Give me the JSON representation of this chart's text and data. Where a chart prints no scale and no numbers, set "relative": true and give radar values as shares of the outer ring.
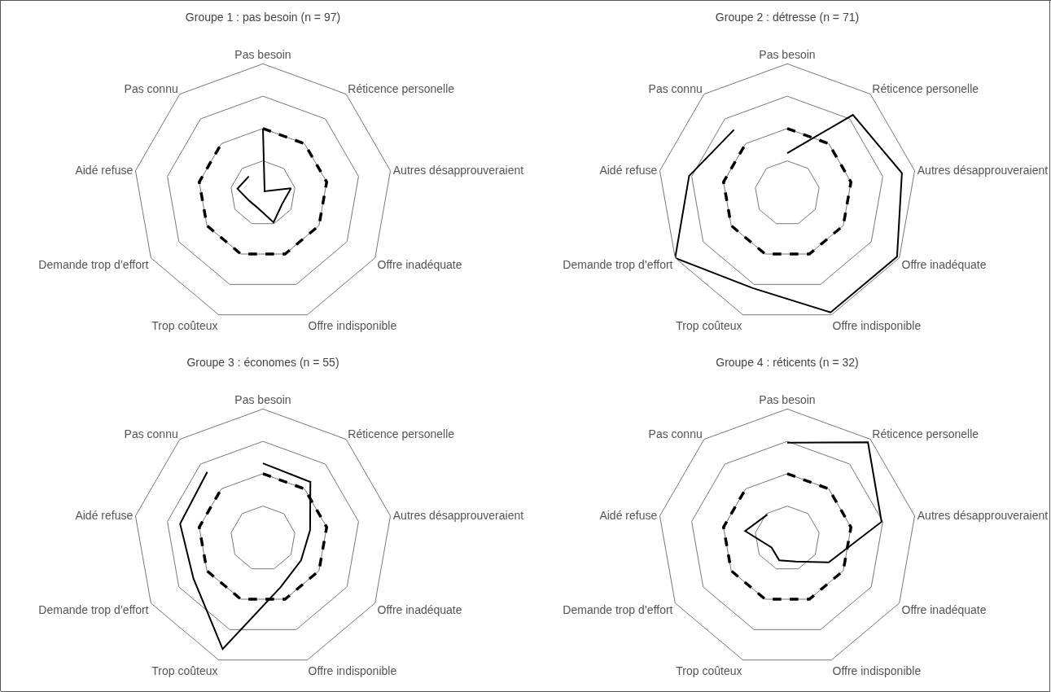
{
  "chart_data": [
    {
      "type": "radar",
      "title": "Groupe 1 : pas besoin (n = 97)",
      "relative": true,
      "grid": true,
      "marker": "none",
      "categories": [
        "Pas besoin",
        "Réticence personelle",
        "Autres désapprouveraient",
        "Offre inadéquate",
        "Offre indisponible",
        "Trop coûteux",
        "Demande trop d’effort",
        "Aidé refuse",
        "Pas connu"
      ],
      "series": [
        {
          "color": "#000000",
          "line_style": "dashed",
          "values": [
            0.5,
            0.5,
            0.5,
            0.5,
            0.5,
            0.5,
            0.5,
            0.5,
            0.5
          ]
        },
        {
          "color": "#000000",
          "line_style": "solid",
          "values": [
            0.5,
            0.02,
            0.22,
            0.17,
            0.24,
            0.12,
            0.12,
            0.2,
            0.17
          ]
        }
      ]
    },
    {
      "type": "radar",
      "title": "Groupe 2 : détresse (n = 71)",
      "relative": true,
      "grid": true,
      "marker": "none",
      "categories": [
        "Pas besoin",
        "Réticence personelle",
        "Autres désapprouveraient",
        "Offre inadéquate",
        "Offre indisponible",
        "Trop coûteux",
        "Demande trop d’effort",
        "Aidé refuse",
        "Pas connu"
      ],
      "series": [
        {
          "color": "#000000",
          "line_style": "dashed",
          "values": [
            0.5,
            0.5,
            0.5,
            0.5,
            0.5,
            0.5,
            0.5,
            0.5,
            0.5
          ]
        },
        {
          "color": "#000000",
          "line_style": "solid",
          "values": [
            0.31,
            0.79,
            0.9,
            0.98,
            0.98,
            0.78,
            1.0,
            0.77,
            0.64
          ]
        }
      ]
    },
    {
      "type": "radar",
      "title": "Groupe 3 : économes (n = 55)",
      "relative": true,
      "grid": true,
      "marker": "none",
      "categories": [
        "Pas besoin",
        "Réticence personelle",
        "Autres désapprouveraient",
        "Offre inadéquate",
        "Offre indisponible",
        "Trop coûteux",
        "Demande trop d’effort",
        "Aidé refuse",
        "Pas connu"
      ],
      "series": [
        {
          "color": "#000000",
          "line_style": "dashed",
          "values": [
            0.5,
            0.5,
            0.5,
            0.5,
            0.5,
            0.5,
            0.5,
            0.5,
            0.5
          ]
        },
        {
          "color": "#000000",
          "line_style": "solid",
          "values": [
            0.58,
            0.57,
            0.37,
            0.34,
            0.4,
            0.91,
            0.62,
            0.65,
            0.67
          ]
        }
      ]
    },
    {
      "type": "radar",
      "title": "Groupe 4 : réticents (n = 32)",
      "relative": true,
      "grid": true,
      "marker": "none",
      "categories": [
        "Pas besoin",
        "Réticence personelle",
        "Autres désapprouveraient",
        "Offre inadéquate",
        "Offre indisponible",
        "Trop coûteux",
        "Demande trop d’effort",
        "Aidé refuse",
        "Pas connu"
      ],
      "series": [
        {
          "color": "#000000",
          "line_style": "dashed",
          "values": [
            0.5,
            0.5,
            0.5,
            0.5,
            0.5,
            0.5,
            0.5,
            0.5,
            0.5
          ]
        },
        {
          "color": "#000000",
          "line_style": "solid",
          "values": [
            0.74,
            0.97,
            0.74,
            0.37,
            0.19,
            0.18,
            0.14,
            0.33,
            0.24
          ]
        }
      ]
    }
  ]
}
